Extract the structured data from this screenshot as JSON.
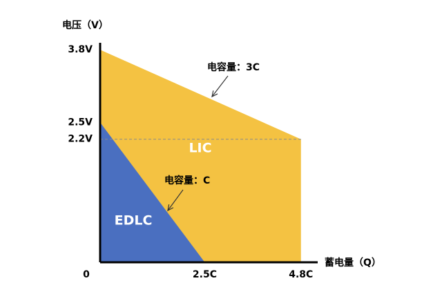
{
  "chart_data": {
    "type": "area",
    "x_label": "蓄电量（Q）",
    "y_label": "电压（V）",
    "xlim": [
      0,
      5.2
    ],
    "ylim": [
      0,
      3.9
    ],
    "xticks": [
      {
        "value": 2.5,
        "label": "2.5C"
      },
      {
        "value": 4.8,
        "label": "4.8C"
      }
    ],
    "yticks": [
      0,
      {
        "value": 2.2,
        "label": "2.2V"
      },
      {
        "value": 2.5,
        "label": "2.5V"
      },
      {
        "value": 3.8,
        "label": "3.8V"
      }
    ],
    "series": [
      {
        "name": "LIC",
        "color": "#f4c242",
        "x": [
          0,
          4.8
        ],
        "values": [
          3.8,
          2.2
        ]
      },
      {
        "name": "EDLC",
        "color": "#4a6fc0",
        "x": [
          0,
          2.5
        ],
        "values": [
          2.5,
          0
        ]
      }
    ],
    "annotations": [
      "电容量：3C",
      "电容量：C"
    ]
  }
}
